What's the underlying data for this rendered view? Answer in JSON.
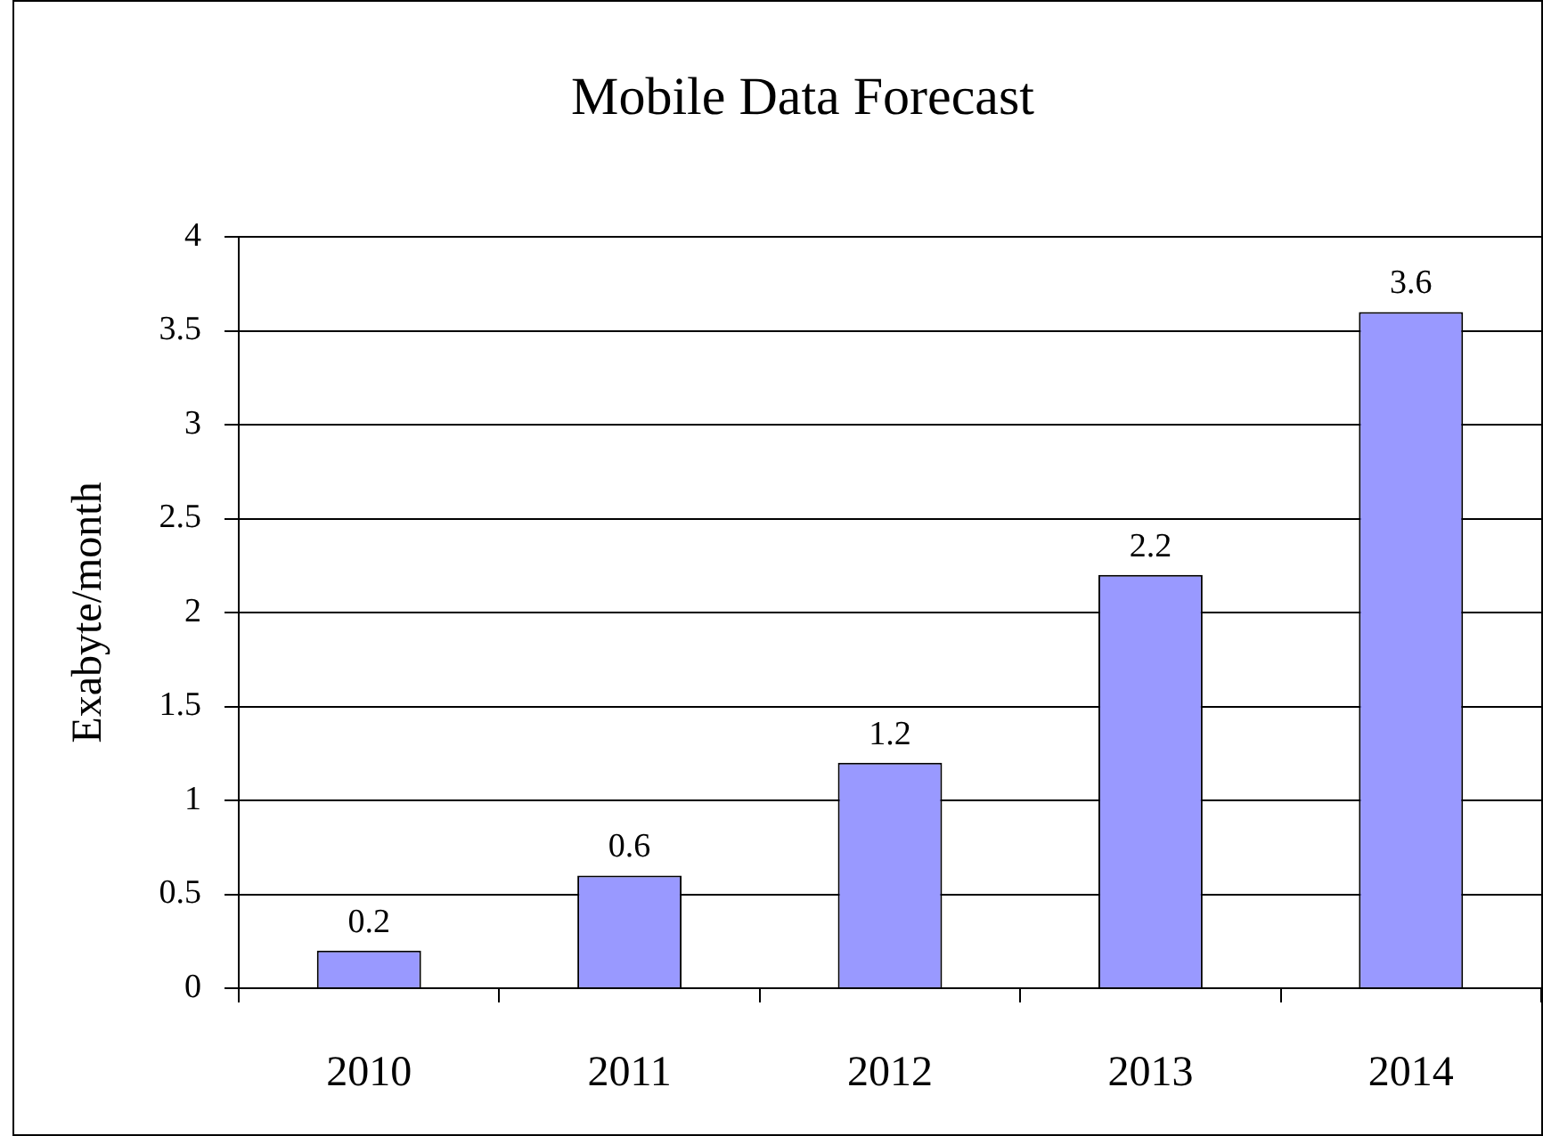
{
  "chart_data": {
    "type": "bar",
    "title": "Mobile Data Forecast",
    "ylabel": "Exabyte/month",
    "categories": [
      "2010",
      "2011",
      "2012",
      "2013",
      "2014"
    ],
    "values": [
      0.2,
      0.6,
      1.2,
      2.2,
      3.6
    ],
    "color": "#9999ff",
    "ylim": [
      0,
      4
    ],
    "yticks": [
      0,
      0.5,
      1,
      1.5,
      2,
      2.5,
      3,
      3.5,
      4
    ],
    "grid": "y",
    "data_labels": true,
    "legend": false
  }
}
